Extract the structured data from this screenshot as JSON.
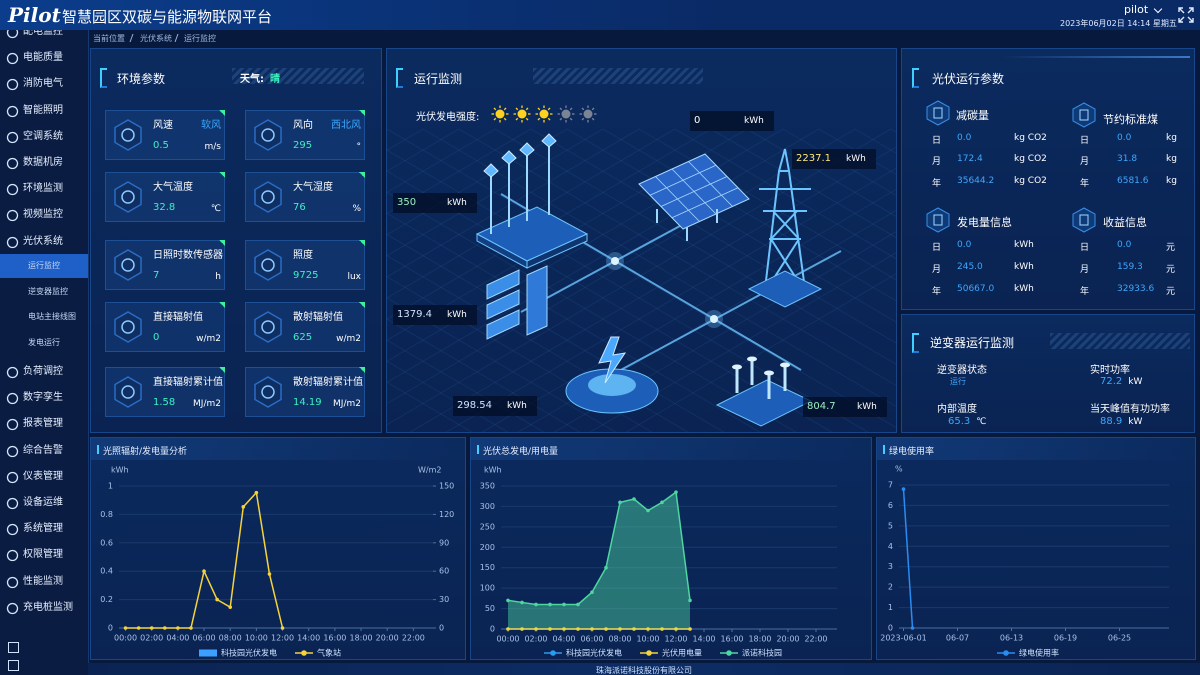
{
  "header": {
    "logo": "Pilot",
    "title": "智慧园区双碳与能源物联网平台",
    "user": "pilot",
    "datetime": "2023年06月02日 14:14 星期五"
  },
  "sidebar": {
    "menu": [
      "配电监控",
      "电能质量",
      "消防电气",
      "智能照明",
      "空调系统",
      "数据机房",
      "环境监测",
      "视频监控",
      "光伏系统"
    ],
    "submenu": [
      "运行监控",
      "逆变器监控",
      "电站主接线图",
      "发电运行"
    ],
    "menu_more": [
      "负荷调控",
      "数字孪生",
      "报表管理",
      "综合告警",
      "仪表管理",
      "设备运维",
      "系统管理",
      "权限管理",
      "性能监测",
      "充电桩监测"
    ]
  },
  "breadcrumb": [
    "当前位置",
    "光伏系统",
    "运行监控"
  ],
  "environment": {
    "title": "环境参数",
    "weather_label": "天气:",
    "weather": "晴",
    "cards": [
      {
        "name": "风速",
        "extra": "软风",
        "value": "0.5",
        "unit": "m/s"
      },
      {
        "name": "风向",
        "extra": "西北风",
        "value": "295",
        "unit": "°"
      },
      {
        "name": "大气温度",
        "value": "32.8",
        "unit": "℃"
      },
      {
        "name": "大气湿度",
        "value": "76",
        "unit": "%"
      },
      {
        "name": "日照时数传感器",
        "value": "7",
        "unit": "h"
      },
      {
        "name": "照度",
        "value": "9725",
        "unit": "lux"
      },
      {
        "name": "直接辐射值",
        "value": "0",
        "unit": "w/m2"
      },
      {
        "name": "散射辐射值",
        "value": "625",
        "unit": "w/m2"
      },
      {
        "name": "直接辐射累计值",
        "value": "1.58",
        "unit": "MJ/m2"
      },
      {
        "name": "散射辐射累计值",
        "value": "14.19",
        "unit": "MJ/m2"
      }
    ]
  },
  "monitoring": {
    "title": "运行监测",
    "intensity_label": "光伏发电强度:",
    "intensity": 3,
    "intensity_max": 5,
    "readings": [
      {
        "value": "0",
        "unit": "kWh"
      },
      {
        "value": "2237.1",
        "unit": "kWh"
      },
      {
        "value": "350",
        "unit": "kWh"
      },
      {
        "value": "1379.4",
        "unit": "kWh"
      },
      {
        "value": "298.54",
        "unit": "kWh"
      },
      {
        "value": "804.7",
        "unit": "kWh"
      }
    ]
  },
  "pv_params": {
    "title": "光伏运行参数",
    "groups": [
      {
        "name": "减碳量",
        "rows": [
          {
            "period": "日",
            "value": "0.0",
            "unit": "kg CO2"
          },
          {
            "period": "月",
            "value": "172.4",
            "unit": "kg CO2"
          },
          {
            "period": "年",
            "value": "35644.2",
            "unit": "kg CO2"
          }
        ]
      },
      {
        "name": "节约标准煤",
        "rows": [
          {
            "period": "日",
            "value": "0.0",
            "unit": "kg"
          },
          {
            "period": "月",
            "value": "31.8",
            "unit": "kg"
          },
          {
            "period": "年",
            "value": "6581.6",
            "unit": "kg"
          }
        ]
      },
      {
        "name": "发电量信息",
        "rows": [
          {
            "period": "日",
            "value": "0.0",
            "unit": "kWh"
          },
          {
            "period": "月",
            "value": "245.0",
            "unit": "kWh"
          },
          {
            "period": "年",
            "value": "50667.0",
            "unit": "kWh"
          }
        ]
      },
      {
        "name": "收益信息",
        "rows": [
          {
            "period": "日",
            "value": "0.0",
            "unit": "元"
          },
          {
            "period": "月",
            "value": "159.3",
            "unit": "元"
          },
          {
            "period": "年",
            "value": "32933.6",
            "unit": "元"
          }
        ]
      }
    ]
  },
  "inverter": {
    "title": "逆变器运行监测",
    "items": [
      {
        "name": "逆变器状态",
        "value": "运行"
      },
      {
        "name": "实时功率",
        "value": "72.2",
        "unit": "kW"
      },
      {
        "name": "内部温度",
        "value": "65.3",
        "unit": "℃"
      },
      {
        "name": "当天峰值有功功率",
        "value": "88.9",
        "unit": "kW"
      }
    ]
  },
  "chart_data": [
    {
      "type": "line",
      "title": "光照辐射/发电量分析",
      "ylabel": "kWh",
      "y2label": "W/m2",
      "categories": [
        "00:00",
        null,
        "02:00",
        null,
        "04:00",
        null,
        "06:00",
        null,
        "08:00",
        null,
        "10:00",
        null,
        "12:00",
        null,
        "14:00",
        null,
        "16:00",
        null,
        "18:00",
        null,
        "20:00",
        null,
        "22:00",
        null
      ],
      "ylim": [
        0,
        1
      ],
      "yticks": [
        0,
        0.2,
        0.4,
        0.6,
        0.8,
        1
      ],
      "y2lim": [
        0,
        150
      ],
      "y2ticks": [
        0,
        30,
        60,
        90,
        120,
        150
      ],
      "grid": true,
      "legend": "bottom",
      "series": [
        {
          "name": "科技园光伏发电",
          "type": "bar",
          "color": "#3ba0ff",
          "values": [
            0,
            0,
            0,
            0,
            0,
            0,
            0,
            0,
            0,
            0,
            0,
            0,
            0,
            null,
            null,
            null,
            null,
            null,
            null,
            null,
            null,
            null,
            null,
            null
          ]
        },
        {
          "name": "气象站",
          "type": "line",
          "axis": "y2",
          "color": "#f5d33c",
          "values": [
            0,
            0,
            0,
            0,
            0,
            0,
            60,
            30,
            22,
            128,
            143,
            57,
            0,
            null,
            null,
            null,
            null,
            null,
            null,
            null,
            null,
            null,
            null,
            null
          ]
        }
      ]
    },
    {
      "type": "line",
      "title": "光伏总发电/用电量",
      "ylabel": "kWh",
      "categories": [
        "00:00",
        null,
        "02:00",
        null,
        "04:00",
        null,
        "06:00",
        null,
        "08:00",
        null,
        "10:00",
        null,
        "12:00",
        null,
        "14:00",
        null,
        "16:00",
        null,
        "18:00",
        null,
        "20:00",
        null,
        "22:00",
        null
      ],
      "ylim": [
        0,
        350
      ],
      "yticks": [
        0,
        50,
        100,
        150,
        200,
        250,
        300,
        350
      ],
      "grid": true,
      "legend": "bottom",
      "series": [
        {
          "name": "科技园光伏发电",
          "type": "line",
          "color": "#2a9cf0",
          "values": [
            0,
            0,
            0,
            0,
            0,
            0,
            0,
            0,
            0,
            0,
            0,
            0,
            0,
            0,
            null,
            null,
            null,
            null,
            null,
            null,
            null,
            null,
            null,
            null
          ]
        },
        {
          "name": "光伏用电量",
          "type": "line",
          "color": "#f5d33c",
          "values": [
            0,
            0,
            0,
            0,
            0,
            0,
            0,
            0,
            0,
            0,
            0,
            0,
            0,
            0,
            null,
            null,
            null,
            null,
            null,
            null,
            null,
            null,
            null,
            null
          ]
        },
        {
          "name": "派诺科技园",
          "type": "area",
          "color": "#4ed6a0",
          "values": [
            70,
            65,
            60,
            60,
            60,
            60,
            90,
            150,
            310,
            318,
            290,
            310,
            335,
            70,
            null,
            null,
            null,
            null,
            null,
            null,
            null,
            null,
            null,
            null
          ]
        }
      ]
    },
    {
      "type": "line",
      "title": "绿电使用率",
      "ylabel": "%",
      "categories": [
        "2023-06-01",
        null,
        null,
        null,
        null,
        null,
        "06-07",
        null,
        null,
        null,
        null,
        null,
        "06-13",
        null,
        null,
        null,
        null,
        null,
        "06-19",
        null,
        null,
        null,
        null,
        null,
        "06-25",
        null,
        null,
        null,
        null,
        null
      ],
      "ylim": [
        0,
        7
      ],
      "yticks": [
        0,
        1,
        2,
        3,
        4,
        5,
        6,
        7
      ],
      "grid": true,
      "legend": "bottom",
      "series": [
        {
          "name": "绿电使用率",
          "color": "#2a8cf0",
          "values": [
            6.8,
            0,
            null,
            null,
            null,
            null,
            null,
            null,
            null,
            null,
            null,
            null,
            null,
            null,
            null,
            null,
            null,
            null,
            null,
            null,
            null,
            null,
            null,
            null,
            null,
            null,
            null,
            null,
            null,
            null
          ]
        }
      ]
    }
  ],
  "footer": "珠海派诺科技股份有限公司"
}
